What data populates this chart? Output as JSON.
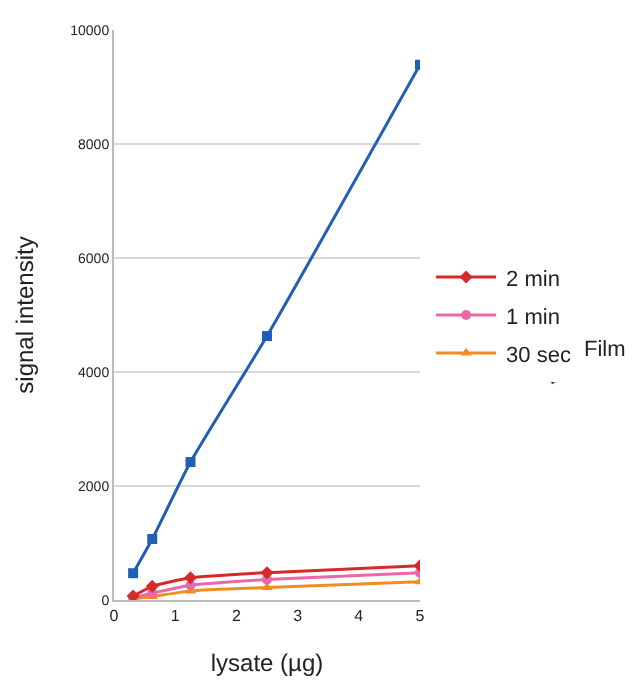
{
  "chart_data": {
    "type": "line",
    "xlabel": "lysate (µg)",
    "ylabel": "signal intensity",
    "x": [
      0.3125,
      0.625,
      1.25,
      2.5,
      5
    ],
    "series": [
      {
        "color": "#1f5fb4",
        "marker": "square",
        "values": [
          470,
          1070,
          2420,
          4630,
          9390
        ]
      },
      {
        "name": "2 min",
        "color": "#d62a2a",
        "marker": "diamond",
        "values": [
          70,
          240,
          390,
          480,
          600
        ]
      },
      {
        "name": "1 min",
        "color": "#e868a8",
        "marker": "circle",
        "values": [
          40,
          120,
          260,
          360,
          480
        ]
      },
      {
        "name": "30 sec",
        "color": "#f28c1e",
        "marker": "triangle",
        "values": [
          20,
          60,
          160,
          220,
          320
        ]
      }
    ],
    "annotations": [
      "Film"
    ],
    "xlim": [
      0,
      5
    ],
    "xticks": [
      0,
      1,
      2,
      3,
      4,
      5
    ],
    "ylim": [
      0,
      10000
    ],
    "yticks": [
      0,
      2000,
      4000,
      6000,
      8000,
      10000
    ],
    "grid": "y",
    "legend": "right"
  }
}
